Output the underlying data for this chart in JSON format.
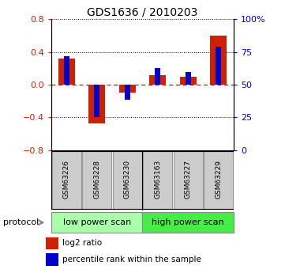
{
  "title": "GDS1636 / 2010203",
  "samples": [
    "GSM63226",
    "GSM63228",
    "GSM63230",
    "GSM63163",
    "GSM63227",
    "GSM63229"
  ],
  "log2_ratio": [
    0.32,
    -0.47,
    -0.1,
    0.12,
    0.1,
    0.6
  ],
  "pct_rank_mapped": [
    0.35,
    -0.4,
    -0.18,
    0.2,
    0.15,
    0.465
  ],
  "red_color": "#cc2200",
  "blue_color": "#0000cc",
  "ylim": [
    -0.8,
    0.8
  ],
  "yticks_left": [
    -0.8,
    -0.4,
    0.0,
    0.4,
    0.8
  ],
  "yticks_right_vals": [
    -0.8,
    -0.4,
    0.0,
    0.4,
    0.8
  ],
  "yticks_right_labels": [
    "0",
    "25",
    "50",
    "75",
    "100%"
  ],
  "group_labels": [
    "low power scan",
    "high power scan"
  ],
  "group_colors": [
    "#aaffaa",
    "#44ee44"
  ],
  "group_ranges": [
    [
      0,
      3
    ],
    [
      3,
      6
    ]
  ],
  "protocol_label": "protocol",
  "legend_red": "log2 ratio",
  "legend_blue": "percentile rank within the sample",
  "red_bar_width": 0.55,
  "blue_bar_width": 0.18,
  "bg_color": "#ffffff",
  "zero_line_color": "#dd0000",
  "dotted_color": "#000000",
  "sample_box_color": "#cccccc",
  "sample_box_edge": "#999999"
}
